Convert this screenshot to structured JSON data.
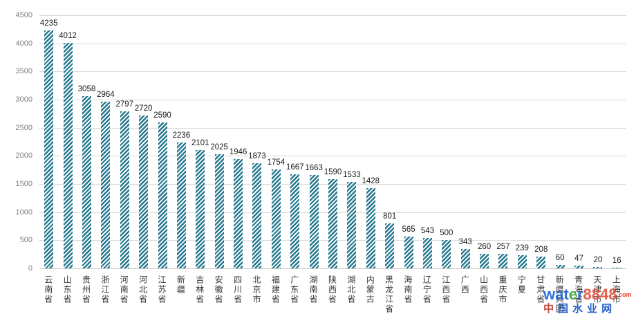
{
  "chart_data": {
    "type": "bar",
    "title": "",
    "xlabel": "",
    "ylabel": "",
    "categories": [
      "云南省",
      "山东省",
      "贵州省",
      "浙江省",
      "河南省",
      "河北省",
      "江苏省",
      "新疆",
      "吉林省",
      "安徽省",
      "四川省",
      "北京市",
      "福建省",
      "广东省",
      "湖南省",
      "陕西省",
      "湖北省",
      "内蒙古",
      "黑龙江省",
      "海南省",
      "辽宁省",
      "江西省",
      "广西",
      "山西省",
      "重庆市",
      "宁夏",
      "甘肃省",
      "新疆兵团",
      "青海省",
      "天津市",
      "上海市"
    ],
    "values": [
      4235,
      4012,
      3058,
      2964,
      2797,
      2720,
      2590,
      2236,
      2101,
      2025,
      1946,
      1873,
      1754,
      1667,
      1663,
      1590,
      1533,
      1428,
      801,
      565,
      543,
      500,
      343,
      260,
      257,
      239,
      208,
      60,
      47,
      20,
      16
    ],
    "ylim": [
      0,
      4500
    ],
    "yticks": [
      0,
      500,
      1000,
      1500,
      2000,
      2500,
      3000,
      3500,
      4000,
      4500
    ],
    "grid": true,
    "legend_position": "none",
    "bar_style": "diagonal-hatch",
    "bar_color": "#26798E",
    "gridline_color": "#d9d9d9",
    "tick_label_color": "#7f7f7f",
    "value_label_color": "#1a1a1a"
  },
  "watermark": {
    "brand_parts": [
      {
        "text": "wat",
        "color": "#1B64D2"
      },
      {
        "text": "e",
        "color": "#3FA535"
      },
      {
        "text": "r",
        "color": "#1B64D2"
      },
      {
        "text": "8848",
        "color": "#E4503A"
      }
    ],
    "tld": ".com",
    "tld_color": "#E03020",
    "site_chars": [
      {
        "text": "中",
        "color": "#C0392B"
      },
      {
        "text": "国",
        "color": "#1A56C4"
      },
      {
        "text": "水",
        "color": "#1A56C4"
      },
      {
        "text": "业",
        "color": "#1A56C4"
      },
      {
        "text": "网",
        "color": "#1A56C4"
      }
    ]
  }
}
